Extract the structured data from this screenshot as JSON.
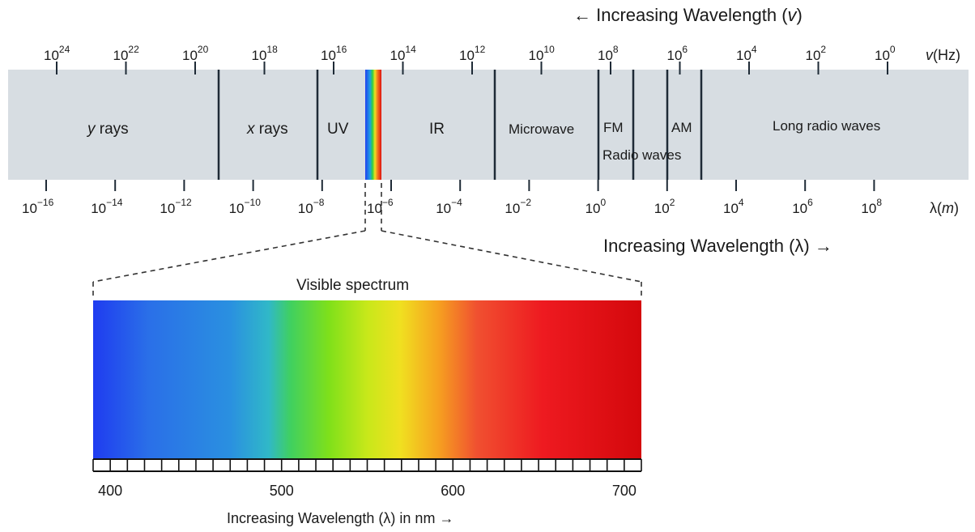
{
  "freq_caption": "← Increasing Wavelength (",
  "freq_caption_var": "v",
  "freq_caption_end": ")",
  "freq_unit_var": "v",
  "freq_unit": "(Hz)",
  "freq_ticks": [
    {
      "base": "10",
      "exp": "24"
    },
    {
      "base": "10",
      "exp": "22"
    },
    {
      "base": "10",
      "exp": "20"
    },
    {
      "base": "10",
      "exp": "18"
    },
    {
      "base": "10",
      "exp": "16"
    },
    {
      "base": "10",
      "exp": "14"
    },
    {
      "base": "10",
      "exp": "12"
    },
    {
      "base": "10",
      "exp": "10"
    },
    {
      "base": "10",
      "exp": "8"
    },
    {
      "base": "10",
      "exp": "6"
    },
    {
      "base": "10",
      "exp": "4"
    },
    {
      "base": "10",
      "exp": "2"
    },
    {
      "base": "10",
      "exp": "0"
    }
  ],
  "wl_unit_lambda": "λ(",
  "wl_unit_var": "m",
  "wl_unit_end": ")",
  "wl_ticks": [
    {
      "base": "10",
      "exp": "−16"
    },
    {
      "base": "10",
      "exp": "−14"
    },
    {
      "base": "10",
      "exp": "−12"
    },
    {
      "base": "10",
      "exp": "−10"
    },
    {
      "base": "10",
      "exp": "−8"
    },
    {
      "base": "10",
      "exp": "−6"
    },
    {
      "base": "10",
      "exp": "−4"
    },
    {
      "base": "10",
      "exp": "−2"
    },
    {
      "base": "10",
      "exp": "0"
    },
    {
      "base": "10",
      "exp": "2"
    },
    {
      "base": "10",
      "exp": "4"
    },
    {
      "base": "10",
      "exp": "6"
    },
    {
      "base": "10",
      "exp": "8"
    }
  ],
  "wl_caption": "Increasing Wavelength (λ) →",
  "bands": {
    "gamma_var": "y",
    "gamma_rest": " rays",
    "xray_var": "x",
    "xray_rest": " rays",
    "uv": "UV",
    "ir": "IR",
    "microwave": "Microwave",
    "fm": "FM",
    "am": "AM",
    "radio": "Radio waves",
    "long_radio": "Long radio waves"
  },
  "visible": {
    "title": "Visible spectrum",
    "ticks": [
      "400",
      "500",
      "600",
      "700"
    ],
    "caption": "Increasing Wavelength (λ) in nm →"
  },
  "colors": {
    "band_bg": "#d7dde2",
    "divider": "#1e2a36"
  }
}
